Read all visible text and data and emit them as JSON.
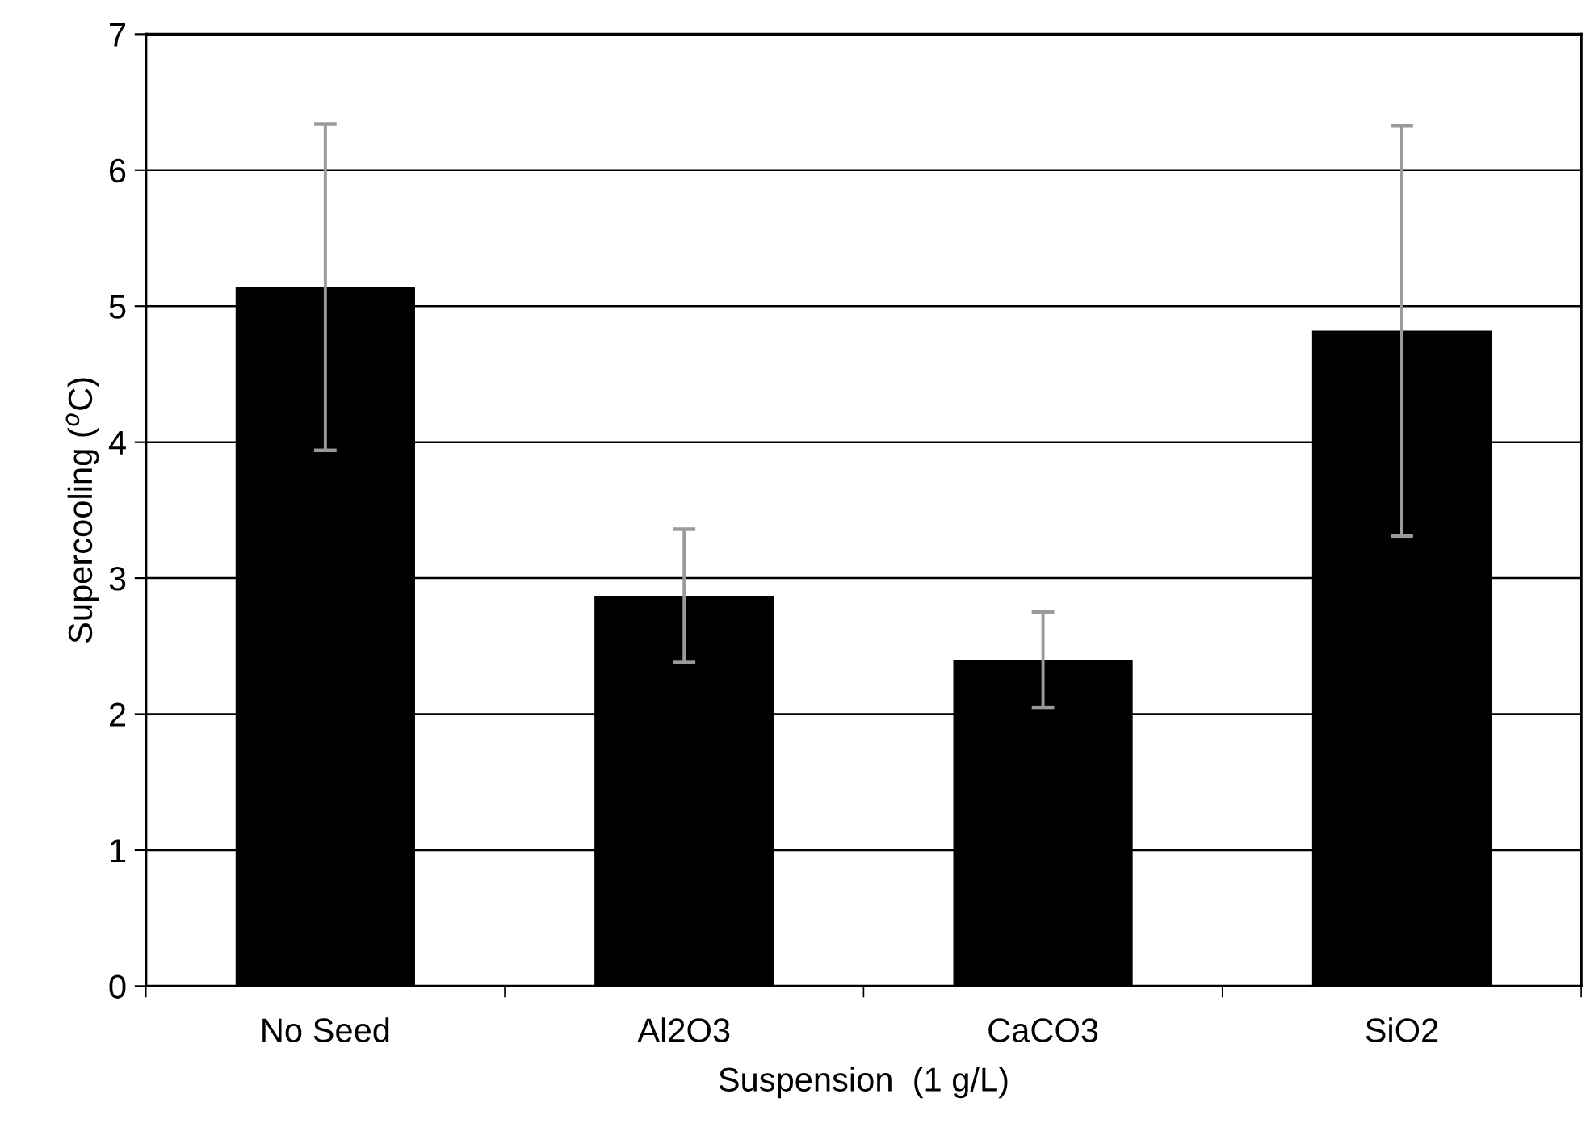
{
  "chart_data": {
    "type": "bar",
    "xlabel": "Suspension  (1 g/L)",
    "ylabel": "Supercooling ($^{o}$C)",
    "categories": [
      "No Seed",
      "Al2O3",
      "CaCO3",
      "SiO2"
    ],
    "values": [
      5.14,
      2.87,
      2.4,
      4.82
    ],
    "errors": [
      1.2,
      0.49,
      0.35,
      1.51
    ],
    "color": "#000000",
    "ylim": [
      0,
      7
    ],
    "yticks": [
      0,
      1,
      2,
      3,
      4,
      5,
      6,
      7
    ],
    "grid": "y"
  }
}
